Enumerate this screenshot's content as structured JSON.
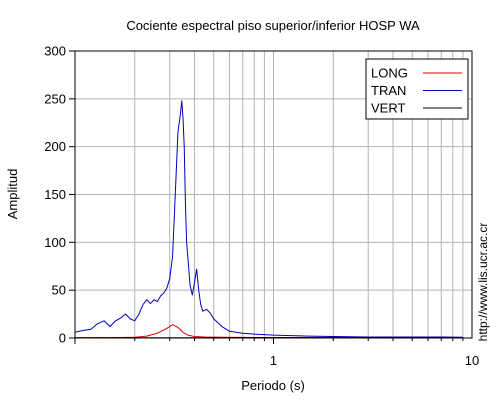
{
  "chart_data": {
    "type": "line",
    "title": "Cociente espectral piso superior/inferior  HOSP WA",
    "xlabel": "Periodo (s)",
    "ylabel": "Amplitud",
    "xscale": "log",
    "xlim": [
      0.1,
      10
    ],
    "ylim": [
      0,
      300
    ],
    "x_tick_labels": [
      "1",
      "10"
    ],
    "y_ticks": [
      0,
      50,
      100,
      150,
      200,
      250,
      300
    ],
    "y_tick_labels": [
      "0",
      "50",
      "100",
      "150",
      "200",
      "250",
      "300"
    ],
    "grid": true,
    "legend_position": "top-right",
    "series": [
      {
        "name": "LONG",
        "color": "#e00000",
        "x": [
          0.1,
          0.15,
          0.2,
          0.23,
          0.26,
          0.29,
          0.31,
          0.33,
          0.35,
          0.37,
          0.4,
          0.45,
          0.55,
          0.7,
          1.0,
          2.0,
          5.0,
          9.0
        ],
        "y": [
          0.3,
          0.4,
          0.8,
          2,
          5,
          10,
          14,
          11,
          6,
          3,
          1.5,
          1,
          0.8,
          0.6,
          0.5,
          0.4,
          0.3,
          0.3
        ]
      },
      {
        "name": "TRAN",
        "color": "#0000c0",
        "x": [
          0.1,
          0.11,
          0.12,
          0.13,
          0.14,
          0.15,
          0.16,
          0.17,
          0.18,
          0.19,
          0.2,
          0.21,
          0.22,
          0.23,
          0.24,
          0.25,
          0.26,
          0.27,
          0.28,
          0.29,
          0.3,
          0.31,
          0.32,
          0.33,
          0.34,
          0.345,
          0.35,
          0.355,
          0.36,
          0.365,
          0.37,
          0.38,
          0.39,
          0.4,
          0.41,
          0.42,
          0.43,
          0.44,
          0.46,
          0.48,
          0.5,
          0.55,
          0.6,
          0.7,
          0.8,
          1.0,
          1.5,
          2.0,
          3.0,
          5.0,
          7.0,
          9.0
        ],
        "y": [
          6,
          8,
          9,
          15,
          18,
          12,
          18,
          21,
          25,
          20,
          18,
          25,
          35,
          40,
          36,
          40,
          38,
          44,
          47,
          52,
          62,
          85,
          150,
          215,
          235,
          248,
          230,
          200,
          140,
          100,
          85,
          55,
          45,
          58,
          72,
          50,
          35,
          28,
          30,
          26,
          20,
          12,
          7,
          5,
          4,
          3,
          2,
          1.5,
          1,
          1,
          1,
          0.8
        ]
      },
      {
        "name": "VERT",
        "color": "#000000",
        "x": [
          0.1,
          0.3,
          0.6,
          1.0,
          2.0,
          5.0,
          9.0
        ],
        "y": [
          0.2,
          0.3,
          0.3,
          0.4,
          0.4,
          0.3,
          0.3
        ]
      }
    ]
  },
  "side_note": "http://www.lis.ucr.ac.cr"
}
